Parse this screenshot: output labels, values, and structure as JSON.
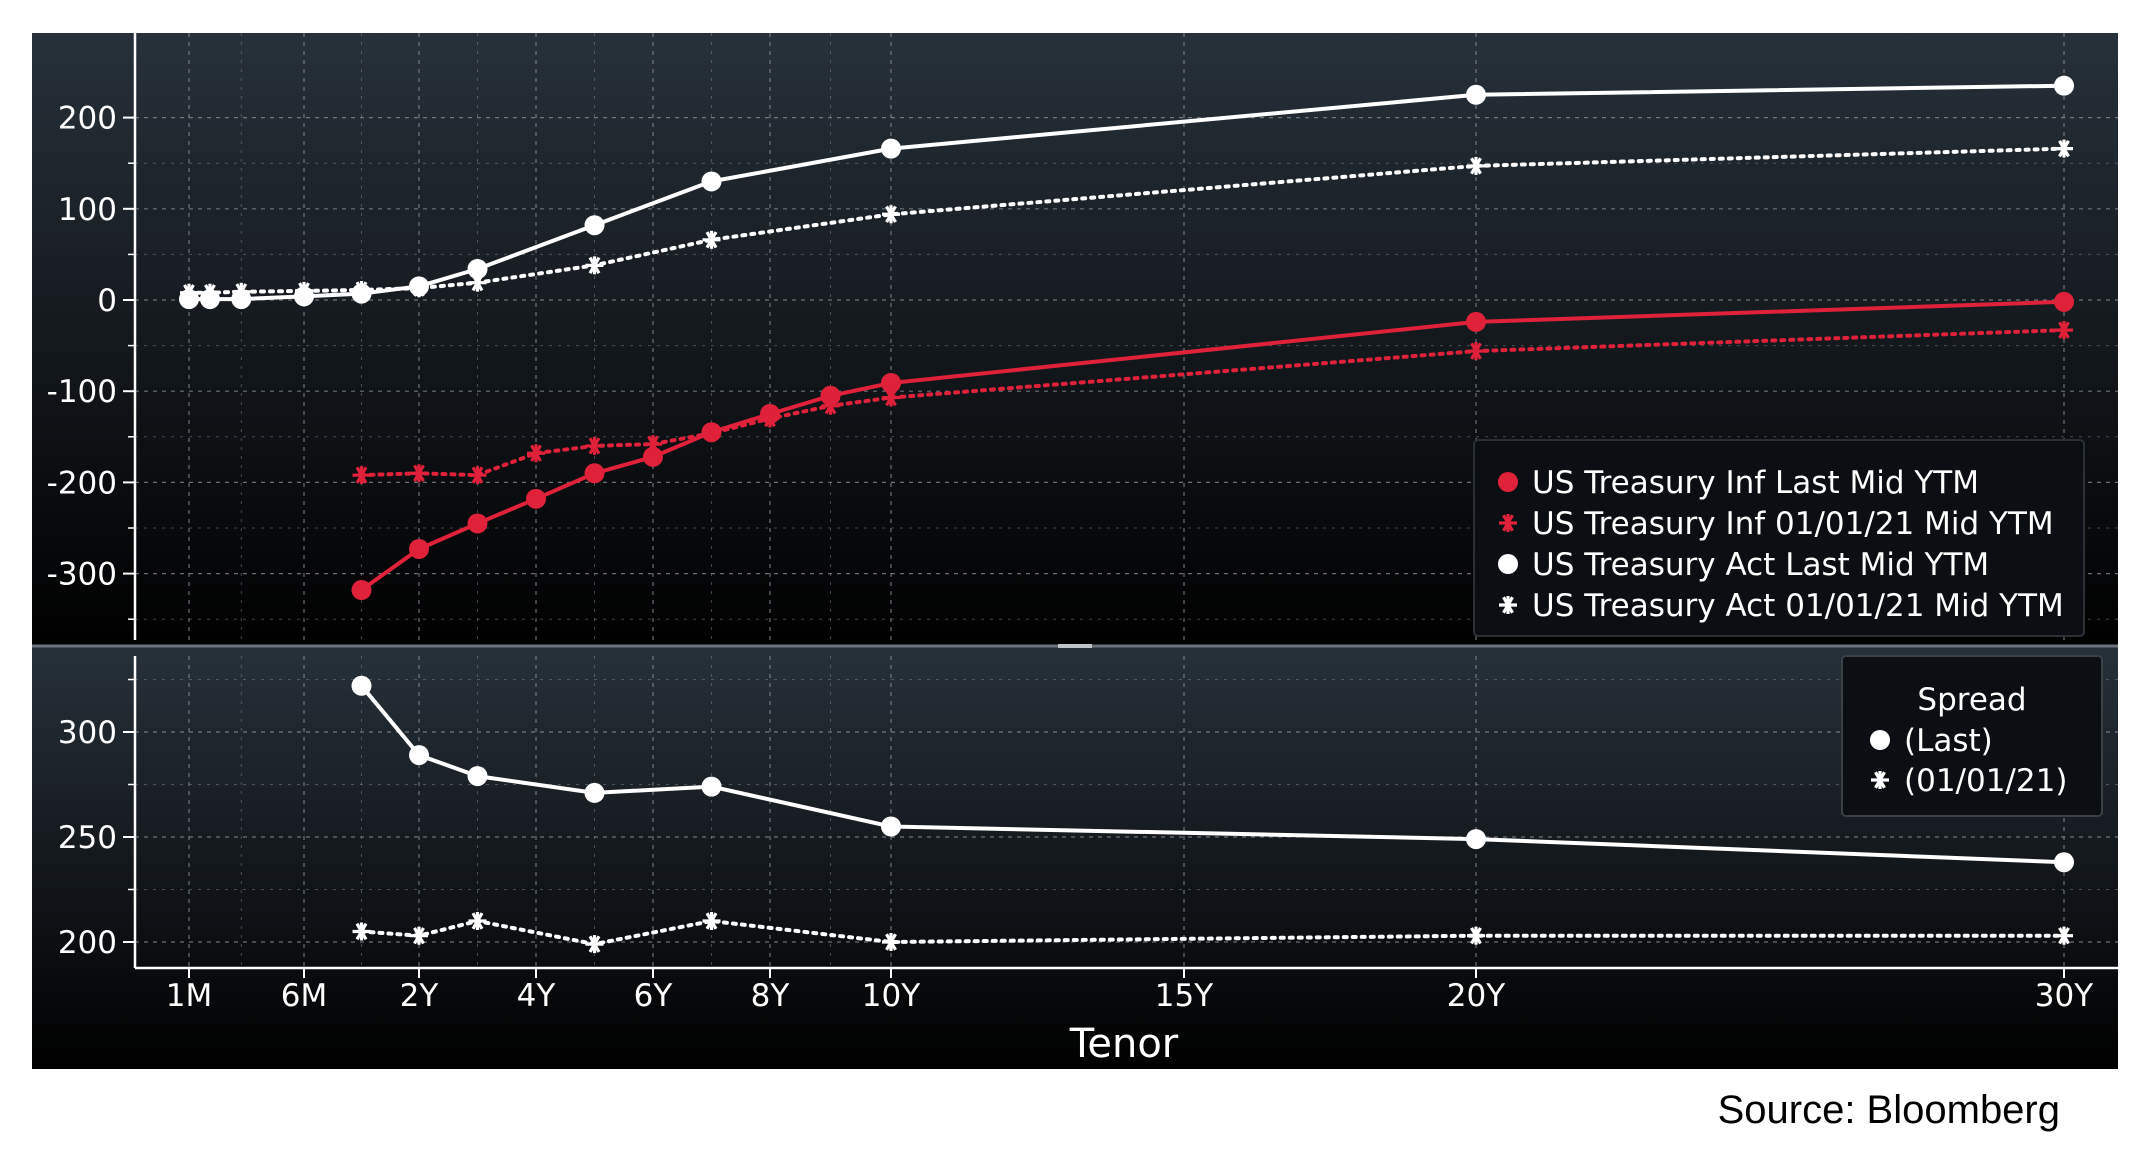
{
  "source_note": "Source: Bloomberg",
  "colors": {
    "background_top": "#27313a",
    "background_bottom": "#000000",
    "grid": "#8a9098",
    "axis": "#ffffff",
    "white_series": "#ffffff",
    "red_series": "#e0213a",
    "legend_bg": "#0b0e12"
  },
  "chart_data": [
    {
      "type": "line",
      "xlabel": "",
      "ylabel": "",
      "ylim": [
        -370,
        245
      ],
      "yticks": [
        {
          "value": 200,
          "label": "200"
        },
        {
          "value": 100,
          "label": "100"
        },
        {
          "value": 0,
          "label": "0"
        },
        {
          "value": -100,
          "label": "-100"
        },
        {
          "value": -200,
          "label": "-200"
        },
        {
          "value": -300,
          "label": "-300"
        }
      ],
      "grid": true,
      "legend_position": "bottom-right",
      "series": [
        {
          "name": "US Treasury Inf Last Mid YTM",
          "color": "#e0213a",
          "marker": "dot",
          "style": "solid",
          "x": [
            1.5,
            2,
            3,
            4,
            5,
            6,
            7,
            8,
            9,
            10,
            20,
            30
          ],
          "y": [
            -318,
            -273,
            -245,
            -218,
            -190,
            -172,
            -145,
            -125,
            -105,
            -91,
            -24,
            -2
          ]
        },
        {
          "name": "US Treasury Inf 01/01/21 Mid YTM",
          "color": "#e0213a",
          "marker": "star",
          "style": "dotted",
          "x": [
            1.5,
            2,
            3,
            4,
            5,
            6,
            7,
            8,
            9,
            10,
            20,
            30
          ],
          "y": [
            -192,
            -190,
            -192,
            -168,
            -160,
            -158,
            -146,
            -130,
            -116,
            -107,
            -56,
            -33
          ]
        },
        {
          "name": "US Treasury Act Last Mid YTM",
          "color": "#ffffff",
          "marker": "dot",
          "style": "solid",
          "x": [
            0.083,
            0.25,
            0.5,
            1,
            1.5,
            2,
            3,
            5,
            7,
            10,
            20,
            30
          ],
          "y": [
            1,
            1,
            1,
            4,
            7,
            15,
            34,
            82,
            130,
            166,
            225,
            235
          ]
        },
        {
          "name": "US Treasury Act 01/01/21 Mid YTM",
          "color": "#ffffff",
          "marker": "star",
          "style": "dotted",
          "x": [
            0.083,
            0.25,
            0.5,
            1,
            1.5,
            2,
            3,
            5,
            7,
            10,
            20,
            30
          ],
          "y": [
            8,
            8,
            9,
            10,
            11,
            13,
            19,
            38,
            66,
            94,
            147,
            166
          ]
        }
      ]
    },
    {
      "type": "line",
      "xlabel": "Tenor",
      "ylabel": "",
      "ylim": [
        185,
        335
      ],
      "yticks": [
        {
          "value": 300,
          "label": "300"
        },
        {
          "value": 250,
          "label": "250"
        },
        {
          "value": 200,
          "label": "200"
        }
      ],
      "xticks": [
        {
          "value": 0.083,
          "label": "1M"
        },
        {
          "value": 1,
          "label": "6M"
        },
        {
          "value": 2,
          "label": "2Y"
        },
        {
          "value": 4,
          "label": "4Y"
        },
        {
          "value": 6,
          "label": "6Y"
        },
        {
          "value": 8,
          "label": "8Y"
        },
        {
          "value": 10,
          "label": "10Y"
        },
        {
          "value": 15,
          "label": "15Y"
        },
        {
          "value": 20,
          "label": "20Y"
        },
        {
          "value": 30,
          "label": "30Y"
        }
      ],
      "grid": true,
      "legend_title": "Spread",
      "legend_position": "top-right",
      "series": [
        {
          "name": "(Last)",
          "color": "#ffffff",
          "marker": "dot",
          "style": "solid",
          "x": [
            1.5,
            2,
            3,
            5,
            7,
            10,
            20,
            30
          ],
          "y": [
            322,
            289,
            279,
            271,
            274,
            255,
            249,
            238
          ]
        },
        {
          "name": "(01/01/21)",
          "color": "#ffffff",
          "marker": "star",
          "style": "dotted",
          "x": [
            1.5,
            2,
            3,
            5,
            7,
            10,
            20,
            30
          ],
          "y": [
            205,
            203,
            210,
            199,
            210,
            200,
            203,
            203
          ]
        }
      ]
    }
  ]
}
